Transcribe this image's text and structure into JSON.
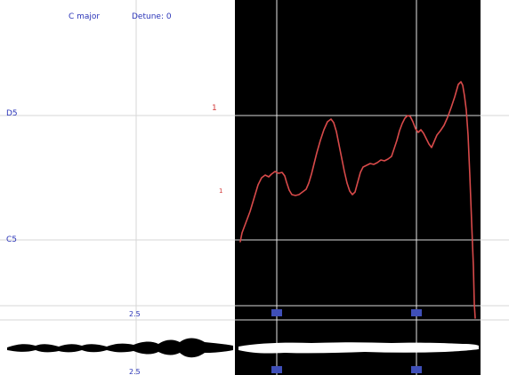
{
  "header": {
    "scale_label": "C major",
    "detune_label": "Detune: 0"
  },
  "pitch_axis": {
    "upper_note": "D5",
    "lower_note": "C5"
  },
  "cursor_markers": {
    "upper": "1",
    "lower": "1"
  },
  "timeline": {
    "upper_tick": "2.5",
    "lower_tick": "2.5"
  },
  "colors": {
    "background": "#ffffff",
    "selection": "#000000",
    "pitch_curve": "#d84a4a",
    "label_blue": "#2a34b8",
    "waveform_light": "#000000",
    "waveform_dark": "#ffffff"
  }
}
